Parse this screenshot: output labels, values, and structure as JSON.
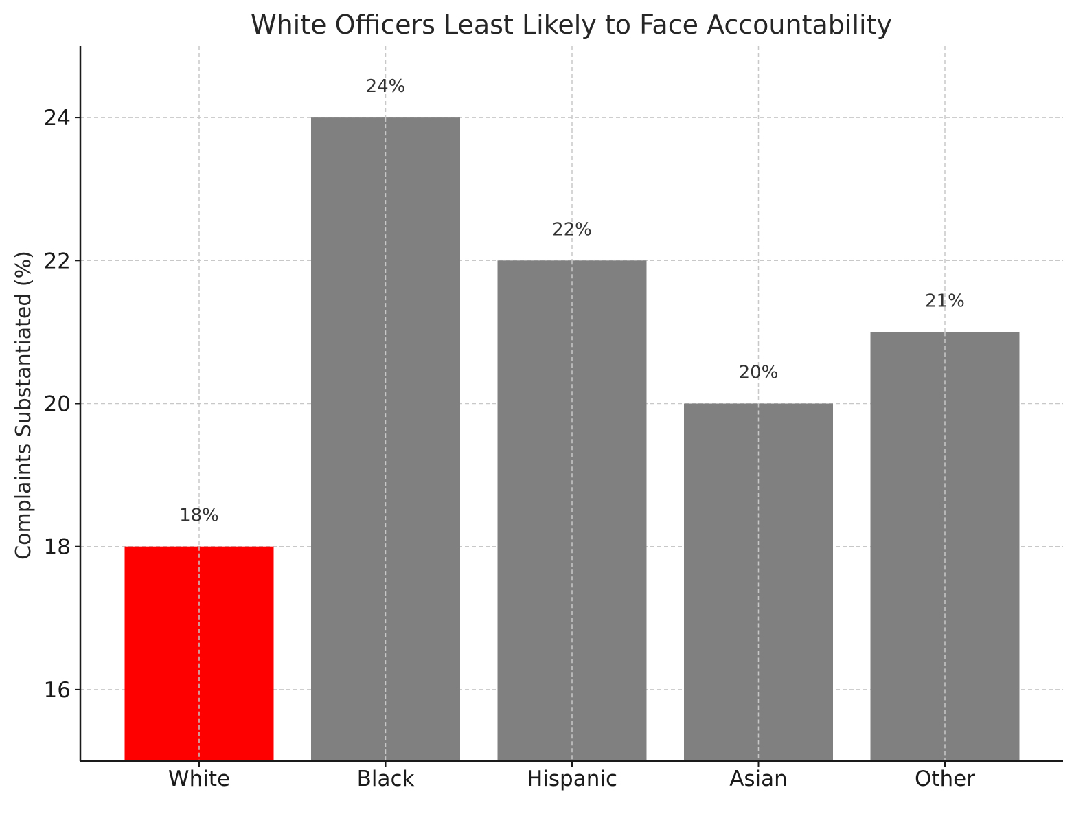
{
  "chart_data": {
    "type": "bar",
    "title": "White Officers Least Likely to Face Accountability",
    "xlabel": "",
    "ylabel": "Complaints Substantiated (%)",
    "categories": [
      "White",
      "Black",
      "Hispanic",
      "Asian",
      "Other"
    ],
    "values": [
      18,
      24,
      22,
      20,
      21
    ],
    "data_labels": [
      "18%",
      "24%",
      "22%",
      "20%",
      "21%"
    ],
    "colors": [
      "#ff0000",
      "#808080",
      "#808080",
      "#808080",
      "#808080"
    ],
    "ylim": [
      15,
      25
    ],
    "yticks": [
      16,
      18,
      20,
      22,
      24
    ],
    "grid": true,
    "legend": "none"
  }
}
